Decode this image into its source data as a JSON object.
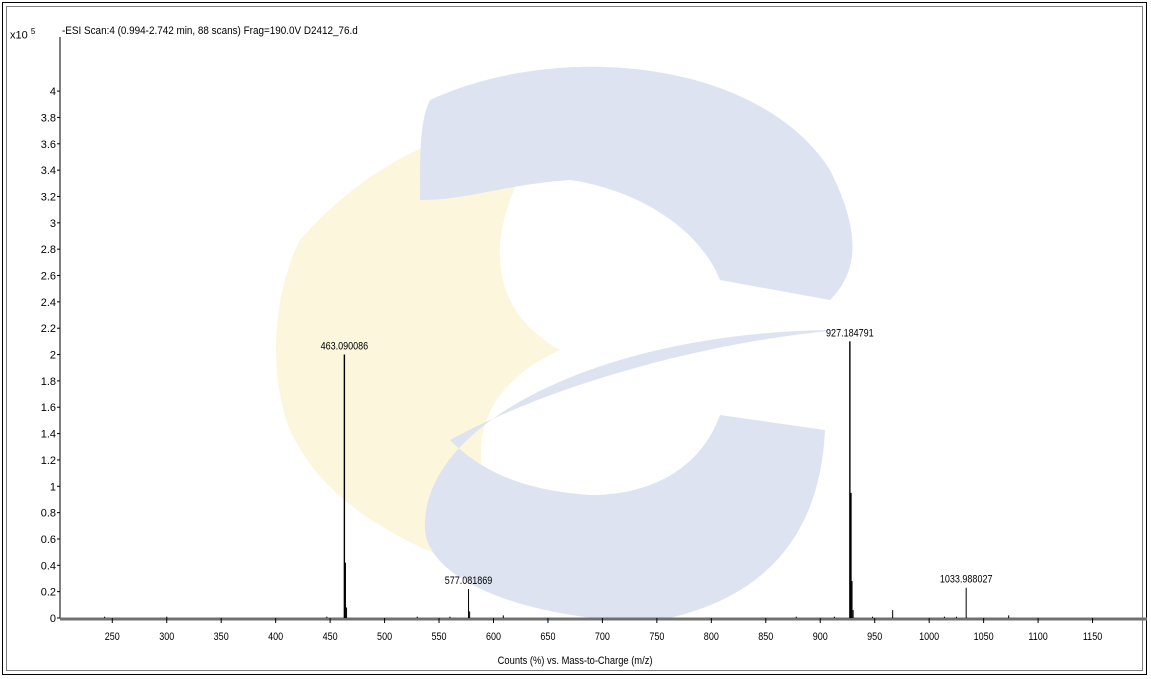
{
  "header": {
    "exponent_base": "x10",
    "exponent_power": "5",
    "scan_title": "-ESI Scan:4 (0.994-2.742 min, 88 scans) Frag=190.0V D2412_76.d"
  },
  "watermark": {
    "shape": "c-logo",
    "colors": {
      "yellow": "#fbf6dc",
      "blue": "#dde3f0"
    }
  },
  "colors": {
    "axis": "#000000",
    "peak": "#000000",
    "baseline": "#707070"
  },
  "chart_data": {
    "type": "bar",
    "title": "-ESI Scan:4 (0.994-2.742 min, 88 scans) Frag=190.0V D2412_76.d",
    "xlabel": "Counts (%) vs. Mass-to-Charge (m/z)",
    "ylabel": "",
    "y_multiplier": "x10^5",
    "xlim": [
      202,
      1200
    ],
    "ylim": [
      0,
      4.35
    ],
    "x_ticks": [
      250,
      300,
      350,
      400,
      450,
      500,
      550,
      600,
      650,
      700,
      750,
      800,
      850,
      900,
      950,
      1000,
      1050,
      1100,
      1150
    ],
    "y_ticks": [
      0,
      0.2,
      0.4,
      0.6,
      0.8,
      1,
      1.2,
      1.4,
      1.6,
      1.8,
      2,
      2.2,
      2.4,
      2.6,
      2.8,
      3,
      3.2,
      3.4,
      3.6,
      3.8,
      4
    ],
    "y_tick_labels": [
      "0",
      "0.2",
      "0.4",
      "0.6",
      "0.8",
      "1",
      "1.2",
      "1.4",
      "1.6",
      "1.8",
      "2",
      "2.2",
      "2.4",
      "2.6",
      "2.8",
      "3",
      "3.2",
      "3.4",
      "3.6",
      "3.8",
      "4"
    ],
    "peaks": [
      {
        "mz": 463.090086,
        "intensity": 2.0,
        "label": "463.090086"
      },
      {
        "mz": 464.09,
        "intensity": 0.42
      },
      {
        "mz": 465.09,
        "intensity": 0.08
      },
      {
        "mz": 577.081869,
        "intensity": 0.22,
        "label": "577.081869"
      },
      {
        "mz": 578.08,
        "intensity": 0.05
      },
      {
        "mz": 927.184791,
        "intensity": 2.1,
        "label": "927.184791"
      },
      {
        "mz": 928.19,
        "intensity": 0.95
      },
      {
        "mz": 929.19,
        "intensity": 0.28
      },
      {
        "mz": 930.19,
        "intensity": 0.06
      },
      {
        "mz": 966.5,
        "intensity": 0.06
      },
      {
        "mz": 1033.988027,
        "intensity": 0.23,
        "label": "1033.988027"
      },
      {
        "mz": 1073.0,
        "intensity": 0.02
      },
      {
        "mz": 243.0,
        "intensity": 0.01
      },
      {
        "mz": 300.0,
        "intensity": 0.01
      },
      {
        "mz": 447.0,
        "intensity": 0.01
      },
      {
        "mz": 530.0,
        "intensity": 0.01
      },
      {
        "mz": 560.0,
        "intensity": 0.01
      },
      {
        "mz": 609.0,
        "intensity": 0.02
      },
      {
        "mz": 878.0,
        "intensity": 0.01
      },
      {
        "mz": 913.0,
        "intensity": 0.01
      },
      {
        "mz": 948.0,
        "intensity": 0.01
      },
      {
        "mz": 1014.0,
        "intensity": 0.01
      },
      {
        "mz": 1025.0,
        "intensity": 0.01
      }
    ],
    "grid": false,
    "legend": "none"
  }
}
